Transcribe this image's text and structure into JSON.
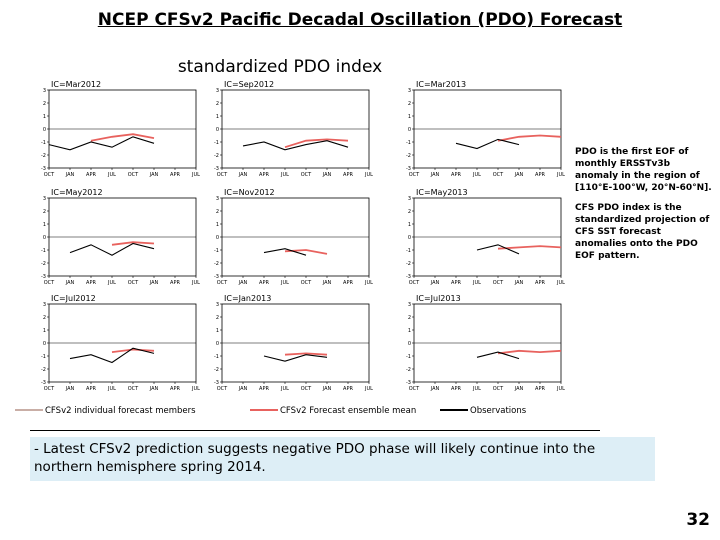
{
  "title": "NCEP CFSv2 Pacific Decadal Oscillation (PDO) Forecast",
  "chart_data": {
    "type": "line",
    "title": "standardized PDO index",
    "legend": [
      {
        "name": "CFSv2 individual forecast members",
        "color": "#c9aea6"
      },
      {
        "name": "CFSv2 Forecast ensemble mean",
        "color": "#e8625e"
      },
      {
        "name": "Observations",
        "color": "#000000"
      }
    ],
    "panels": [
      {
        "label": "IC=Mar2012",
        "categories": [
          "OCT",
          "JAN",
          "APR",
          "JUL",
          "OCT",
          "JAN",
          "APR",
          "JUL"
        ],
        "ylim": [
          -3,
          3
        ],
        "yticks": [
          -3,
          -2,
          -1,
          0,
          1,
          2,
          3
        ],
        "observations": [
          -1.2,
          -1.6,
          -1.0,
          -1.4,
          -0.6,
          -1.1,
          null,
          null
        ],
        "ensemble_mean": [
          null,
          null,
          -0.9,
          -0.6,
          -0.4,
          -0.7,
          null,
          null
        ]
      },
      {
        "label": "IC=Sep2012",
        "categories": [
          "OCT",
          "JAN",
          "APR",
          "JUL",
          "OCT",
          "JAN",
          "APR",
          "JUL"
        ],
        "ylim": [
          -3,
          3
        ],
        "yticks": [
          -3,
          -2,
          -1,
          0,
          1,
          2,
          3
        ],
        "observations": [
          null,
          -1.3,
          -1.0,
          -1.6,
          -1.2,
          -0.9,
          -1.4,
          null
        ],
        "ensemble_mean": [
          null,
          null,
          null,
          -1.4,
          -0.9,
          -0.8,
          -0.9,
          null
        ]
      },
      {
        "label": "IC=Mar2013",
        "categories": [
          "OCT",
          "JAN",
          "APR",
          "JUL",
          "OCT",
          "JAN",
          "APR",
          "JUL"
        ],
        "ylim": [
          -3,
          3
        ],
        "yticks": [
          -3,
          -2,
          -1,
          0,
          1,
          2,
          3
        ],
        "observations": [
          null,
          null,
          -1.1,
          -1.5,
          -0.8,
          -1.2,
          null,
          null
        ],
        "ensemble_mean": [
          null,
          null,
          null,
          null,
          -0.9,
          -0.6,
          -0.5,
          -0.6
        ]
      },
      {
        "label": "IC=May2012",
        "categories": [
          "OCT",
          "JAN",
          "APR",
          "JUL",
          "OCT",
          "JAN",
          "APR",
          "JUL"
        ],
        "ylim": [
          -3,
          3
        ],
        "yticks": [
          -3,
          -2,
          -1,
          0,
          1,
          2,
          3
        ],
        "observations": [
          null,
          -1.2,
          -0.6,
          -1.4,
          -0.5,
          -0.9,
          null,
          null
        ],
        "ensemble_mean": [
          null,
          null,
          null,
          -0.6,
          -0.4,
          -0.5,
          null,
          null
        ]
      },
      {
        "label": "IC=Nov2012",
        "categories": [
          "OCT",
          "JAN",
          "APR",
          "JUL",
          "OCT",
          "JAN",
          "APR",
          "JUL"
        ],
        "ylim": [
          -3,
          3
        ],
        "yticks": [
          -3,
          -2,
          -1,
          0,
          1,
          2,
          3
        ],
        "observations": [
          null,
          null,
          -1.2,
          -0.9,
          -1.4,
          null,
          null,
          null
        ],
        "ensemble_mean": [
          null,
          null,
          null,
          -1.1,
          -1.0,
          -1.3,
          null,
          null
        ]
      },
      {
        "label": "IC=May2013",
        "categories": [
          "OCT",
          "JAN",
          "APR",
          "JUL",
          "OCT",
          "JAN",
          "APR",
          "JUL"
        ],
        "ylim": [
          -3,
          3
        ],
        "yticks": [
          -3,
          -2,
          -1,
          0,
          1,
          2,
          3
        ],
        "observations": [
          null,
          null,
          null,
          -1.0,
          -0.6,
          -1.3,
          null,
          null
        ],
        "ensemble_mean": [
          null,
          null,
          null,
          null,
          -0.9,
          -0.8,
          -0.7,
          -0.8
        ]
      },
      {
        "label": "IC=Jul2012",
        "categories": [
          "OCT",
          "JAN",
          "APR",
          "JUL",
          "OCT",
          "JAN",
          "APR",
          "JUL"
        ],
        "ylim": [
          -3,
          3
        ],
        "yticks": [
          -3,
          -2,
          -1,
          0,
          1,
          2,
          3
        ],
        "observations": [
          null,
          -1.2,
          -0.9,
          -1.5,
          -0.4,
          -0.8,
          null,
          null
        ],
        "ensemble_mean": [
          null,
          null,
          null,
          -0.7,
          -0.5,
          -0.6,
          null,
          null
        ]
      },
      {
        "label": "IC=Jan2013",
        "categories": [
          "OCT",
          "JAN",
          "APR",
          "JUL",
          "OCT",
          "JAN",
          "APR",
          "JUL"
        ],
        "ylim": [
          -3,
          3
        ],
        "yticks": [
          -3,
          -2,
          -1,
          0,
          1,
          2,
          3
        ],
        "observations": [
          null,
          null,
          -1.0,
          -1.4,
          -0.9,
          -1.1,
          null,
          null
        ],
        "ensemble_mean": [
          null,
          null,
          null,
          -0.9,
          -0.8,
          -0.9,
          null,
          null
        ]
      },
      {
        "label": "IC=Jul2013",
        "categories": [
          "OCT",
          "JAN",
          "APR",
          "JUL",
          "OCT",
          "JAN",
          "APR",
          "JUL"
        ],
        "ylim": [
          -3,
          3
        ],
        "yticks": [
          -3,
          -2,
          -1,
          0,
          1,
          2,
          3
        ],
        "observations": [
          null,
          null,
          null,
          -1.1,
          -0.7,
          -1.2,
          null,
          null
        ],
        "ensemble_mean": [
          null,
          null,
          null,
          null,
          -0.8,
          -0.6,
          -0.7,
          -0.6
        ]
      }
    ]
  },
  "notes": [
    "PDO is the first EOF of monthly ERSSTv3b anomaly in the region of [110°E-100°W, 20°N-60°N].",
    "CFS PDO index is the standardized projection of CFS SST forecast anomalies onto the PDO EOF pattern."
  ],
  "summary": "- Latest CFSv2 prediction suggests negative PDO phase will likely continue into the northern hemisphere spring 2014.",
  "page_number": "32"
}
